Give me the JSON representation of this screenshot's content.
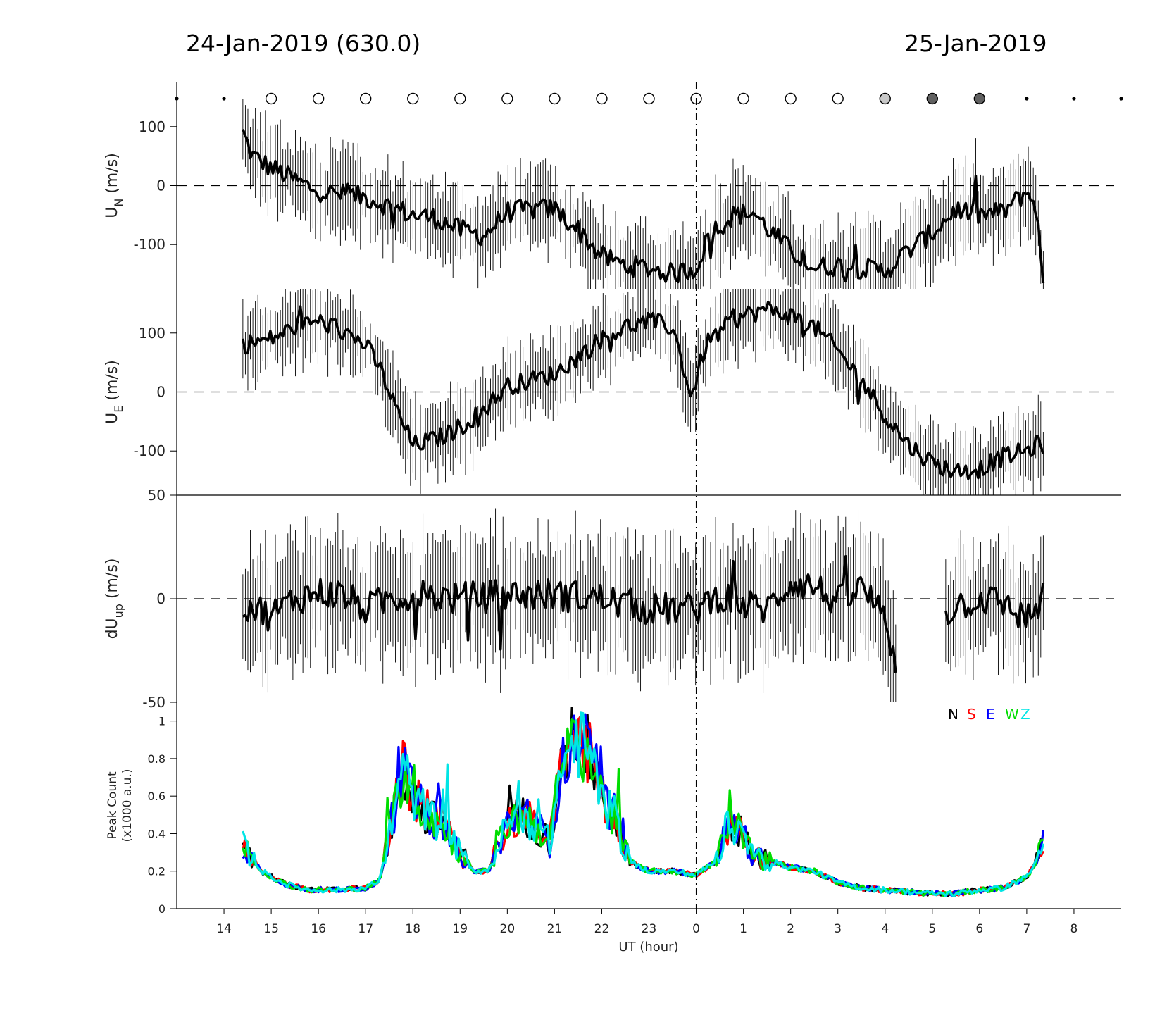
{
  "header": {
    "left_title": "24-Jan-2019 (630.0)",
    "right_title": "25-Jan-2019"
  },
  "x_axis": {
    "label": "UT (hour)",
    "ticks": [
      14,
      15,
      16,
      17,
      18,
      19,
      20,
      21,
      22,
      23,
      0,
      1,
      2,
      3,
      4,
      5,
      6,
      7,
      8
    ],
    "tick_labels": [
      "14",
      "15",
      "16",
      "17",
      "18",
      "19",
      "20",
      "21",
      "22",
      "23",
      "0",
      "1",
      "2",
      "3",
      "4",
      "5",
      "6",
      "7",
      "8"
    ],
    "range_hours": [
      13,
      33
    ]
  },
  "sky_indicators": {
    "hours": [
      13,
      14,
      15,
      16,
      17,
      18,
      19,
      20,
      21,
      22,
      23,
      24,
      25,
      26,
      27,
      28,
      29,
      30,
      31,
      32,
      33
    ],
    "states": [
      "dot",
      "dot",
      "clear",
      "clear",
      "clear",
      "clear",
      "clear",
      "clear",
      "clear",
      "clear",
      "clear",
      "clear",
      "clear",
      "clear",
      "clear",
      "light",
      "dark",
      "dark",
      "dot",
      "dot",
      "dot"
    ],
    "colors": {
      "clear": "#ffffff",
      "light": "#c8c8c8",
      "dark": "#606060",
      "dot": "#000000"
    }
  },
  "chart_data": [
    {
      "type": "line",
      "id": "un",
      "ylabel": "U",
      "ylabel_sub": "N",
      "ylabel_unit": " (m/s)",
      "ylim": [
        -175,
        175
      ],
      "yticks": [
        100,
        0,
        -100
      ],
      "ytick_labels": [
        "100",
        "0",
        "-100"
      ],
      "reference_line": 0,
      "x_range": [
        14.4,
        31.35
      ],
      "knots": [
        [
          14.4,
          90
        ],
        [
          14.6,
          50
        ],
        [
          15,
          30
        ],
        [
          15.5,
          10
        ],
        [
          16,
          -10
        ],
        [
          16.5,
          -15
        ],
        [
          17,
          -20
        ],
        [
          17.5,
          -35
        ],
        [
          18,
          -50
        ],
        [
          18.5,
          -55
        ],
        [
          19,
          -75
        ],
        [
          19.5,
          -85
        ],
        [
          20,
          -45
        ],
        [
          20.5,
          -40
        ],
        [
          21,
          -40
        ],
        [
          21.5,
          -75
        ],
        [
          22,
          -120
        ],
        [
          22.5,
          -135
        ],
        [
          23,
          -140
        ],
        [
          23.5,
          -150
        ],
        [
          24,
          -140
        ],
        [
          24.3,
          -80
        ],
        [
          24.8,
          -50
        ],
        [
          25.2,
          -45
        ],
        [
          25.6,
          -80
        ],
        [
          26,
          -110
        ],
        [
          26.5,
          -140
        ],
        [
          27,
          -135
        ],
        [
          27.5,
          -140
        ],
        [
          28,
          -145
        ],
        [
          28.5,
          -110
        ],
        [
          29,
          -80
        ],
        [
          29.5,
          -40
        ],
        [
          30,
          -50
        ],
        [
          30.5,
          -45
        ],
        [
          31,
          -10
        ],
        [
          31.2,
          -35
        ],
        [
          31.35,
          -175
        ]
      ],
      "noise": 18,
      "error": 60
    },
    {
      "type": "line",
      "id": "ue",
      "ylabel": "U",
      "ylabel_sub": "E",
      "ylabel_unit": " (m/s)",
      "ylim": [
        -175,
        175
      ],
      "yticks": [
        100,
        0,
        -100
      ],
      "ytick_labels": [
        "100",
        "0",
        "-100"
      ],
      "reference_line": 0,
      "x_range": [
        14.4,
        31.35
      ],
      "knots": [
        [
          14.4,
          80
        ],
        [
          15,
          90
        ],
        [
          15.5,
          110
        ],
        [
          16,
          120
        ],
        [
          16.5,
          105
        ],
        [
          17,
          80
        ],
        [
          17.3,
          40
        ],
        [
          17.6,
          -20
        ],
        [
          18,
          -90
        ],
        [
          18.5,
          -80
        ],
        [
          19,
          -60
        ],
        [
          19.5,
          -30
        ],
        [
          20,
          10
        ],
        [
          20.5,
          20
        ],
        [
          21,
          30
        ],
        [
          21.5,
          60
        ],
        [
          22,
          90
        ],
        [
          22.5,
          110
        ],
        [
          23,
          120
        ],
        [
          23.5,
          110
        ],
        [
          23.9,
          -10
        ],
        [
          24.2,
          80
        ],
        [
          24.6,
          110
        ],
        [
          25,
          130
        ],
        [
          25.5,
          140
        ],
        [
          26,
          130
        ],
        [
          26.5,
          110
        ],
        [
          27,
          70
        ],
        [
          27.5,
          20
        ],
        [
          28,
          -40
        ],
        [
          28.5,
          -90
        ],
        [
          29,
          -120
        ],
        [
          29.5,
          -135
        ],
        [
          30,
          -130
        ],
        [
          30.5,
          -110
        ],
        [
          31,
          -100
        ],
        [
          31.2,
          -90
        ],
        [
          31.35,
          -90
        ]
      ],
      "noise": 16,
      "error": 55
    },
    {
      "type": "line",
      "id": "dup",
      "ylabel": "dU",
      "ylabel_sub": "up",
      "ylabel_unit": " (m/s)",
      "ylim": [
        -50,
        50
      ],
      "yticks": [
        50,
        0,
        -50
      ],
      "ytick_labels": [
        "50",
        "0",
        "-50"
      ],
      "reference_line": 0,
      "x_range": [
        14.4,
        31.35
      ],
      "knots": [
        [
          14.4,
          -2
        ],
        [
          15,
          -8
        ],
        [
          15.5,
          0
        ],
        [
          16,
          3
        ],
        [
          16.5,
          2
        ],
        [
          17,
          -5
        ],
        [
          17.5,
          0
        ],
        [
          18,
          2
        ],
        [
          19,
          0
        ],
        [
          20,
          2
        ],
        [
          21,
          2
        ],
        [
          22,
          0
        ],
        [
          23,
          -5
        ],
        [
          24,
          -5
        ],
        [
          24.5,
          2
        ],
        [
          25,
          -3
        ],
        [
          25.5,
          -5
        ],
        [
          26,
          8
        ],
        [
          26.5,
          6
        ],
        [
          27,
          -2
        ],
        [
          27.5,
          5
        ],
        [
          28,
          -8
        ],
        [
          28.2,
          -30
        ],
        [
          29.5,
          -3
        ],
        [
          30,
          0
        ],
        [
          30.5,
          -2
        ],
        [
          31,
          -10
        ],
        [
          31.35,
          0
        ]
      ],
      "gaps": [
        [
          28.25,
          29.25
        ]
      ],
      "noise": 8,
      "error": 25
    },
    {
      "type": "line",
      "id": "peak",
      "ylabel": "Peak Count",
      "ylabel_line2": "(x1000 a.u.)",
      "ylim": [
        0,
        1.1
      ],
      "yticks": [
        0,
        0.2,
        0.4,
        0.6,
        0.8,
        1
      ],
      "ytick_labels": [
        "0",
        "0.2",
        "0.4",
        "0.6",
        "0.8",
        "1"
      ],
      "x_range": [
        14.4,
        31.35
      ],
      "legend_position": "top-right",
      "series": [
        {
          "name": "N",
          "color": "#000000"
        },
        {
          "name": "S",
          "color": "#ff0000"
        },
        {
          "name": "E",
          "color": "#0000ff"
        },
        {
          "name": "W",
          "color": "#00dd00"
        },
        {
          "name": "Z",
          "color": "#00e5e5"
        }
      ],
      "knots": [
        [
          14.4,
          0.34
        ],
        [
          14.8,
          0.2
        ],
        [
          15.3,
          0.13
        ],
        [
          15.8,
          0.1
        ],
        [
          16.5,
          0.1
        ],
        [
          17,
          0.11
        ],
        [
          17.3,
          0.15
        ],
        [
          17.5,
          0.4
        ],
        [
          17.8,
          0.75
        ],
        [
          18,
          0.6
        ],
        [
          18.3,
          0.5
        ],
        [
          18.6,
          0.45
        ],
        [
          19,
          0.3
        ],
        [
          19.3,
          0.2
        ],
        [
          19.6,
          0.2
        ],
        [
          20,
          0.45
        ],
        [
          20.3,
          0.5
        ],
        [
          20.6,
          0.45
        ],
        [
          20.9,
          0.35
        ],
        [
          21.1,
          0.7
        ],
        [
          21.4,
          0.9
        ],
        [
          21.7,
          0.85
        ],
        [
          22,
          0.6
        ],
        [
          22.3,
          0.45
        ],
        [
          22.6,
          0.25
        ],
        [
          23,
          0.2
        ],
        [
          23.5,
          0.2
        ],
        [
          24,
          0.18
        ],
        [
          24.4,
          0.25
        ],
        [
          24.7,
          0.45
        ],
        [
          25,
          0.4
        ],
        [
          25.2,
          0.28
        ],
        [
          25.6,
          0.25
        ],
        [
          26,
          0.22
        ],
        [
          26.5,
          0.2
        ],
        [
          27,
          0.14
        ],
        [
          27.5,
          0.11
        ],
        [
          28,
          0.1
        ],
        [
          28.5,
          0.09
        ],
        [
          29,
          0.08
        ],
        [
          29.5,
          0.08
        ],
        [
          30,
          0.1
        ],
        [
          30.5,
          0.11
        ],
        [
          31,
          0.17
        ],
        [
          31.2,
          0.25
        ],
        [
          31.35,
          0.35
        ]
      ]
    }
  ]
}
